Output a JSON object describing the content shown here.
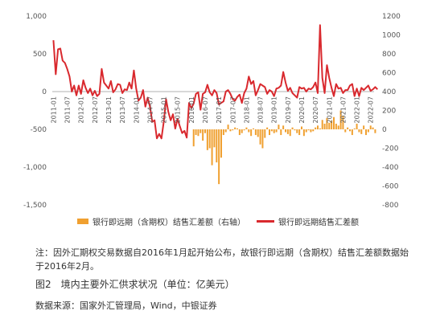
{
  "chart_data": {
    "type": "bar+line",
    "x_tick_labels": [
      "2011-01",
      "2011-07",
      "2012-01",
      "2012-07",
      "2013-01",
      "2013-07",
      "2014-01",
      "2014-07",
      "2015-01",
      "2015-07",
      "2016-01",
      "2016-07",
      "2017-01",
      "2017-07",
      "2018-01",
      "2018-07",
      "2019-01",
      "2019-07",
      "2020-01",
      "2020-07",
      "2021-01",
      "2021-07",
      "2022-01",
      "2022-07"
    ],
    "left_axis": {
      "ticks": [
        1000,
        500,
        0,
        -500,
        -1000,
        -1500
      ],
      "tick_labels": [
        "1,000",
        "500",
        "0",
        "-500",
        "-1,000",
        "-1,500"
      ],
      "range": [
        -1500,
        1000
      ]
    },
    "right_axis": {
      "ticks": [
        1200,
        1000,
        800,
        600,
        400,
        200,
        0,
        -200,
        -400,
        -600,
        -800
      ],
      "tick_labels": [
        "1200",
        "1000",
        "800",
        "600",
        "400",
        "200",
        "0",
        "-200",
        "-400",
        "-600",
        "-800"
      ],
      "range": [
        -800,
        1200
      ]
    },
    "series": [
      {
        "name": "银行即远期（含期权）结售汇差额（右轴）",
        "type": "bar",
        "axis": "right",
        "color": "#f0a030",
        "start": "2016-02",
        "values": [
          -180,
          -60,
          -70,
          -40,
          -120,
          -40,
          -220,
          -200,
          -380,
          -190,
          -350,
          -580,
          -300,
          -60,
          -30,
          50,
          -20,
          -10,
          20,
          10,
          -60,
          -40,
          -10,
          20,
          -30,
          -70,
          10,
          -60,
          -80,
          -160,
          -200,
          -90,
          20,
          -60,
          -20,
          -40,
          -30,
          50,
          -60,
          40,
          -30,
          -50,
          -70,
          20,
          -10,
          -40,
          -60,
          30,
          -70,
          -30,
          -10,
          -30,
          -20,
          20,
          40,
          10,
          100,
          60,
          120,
          70,
          90,
          130,
          60,
          40,
          200,
          140,
          -30,
          20,
          -20,
          -60,
          10,
          60,
          -30,
          -50,
          40,
          -60,
          -30,
          40,
          20,
          -40
        ]
      },
      {
        "name": "银行即远期结售汇差额",
        "type": "line",
        "axis": "left",
        "color": "#d9292e",
        "start": "2011-01",
        "values": [
          680,
          230,
          560,
          570,
          410,
          380,
          300,
          200,
          0,
          80,
          -50,
          80,
          -30,
          150,
          50,
          -20,
          40,
          -50,
          10,
          -60,
          -30,
          300,
          120,
          80,
          40,
          140,
          -10,
          30,
          100,
          90,
          -20,
          30,
          20,
          120,
          40,
          280,
          40,
          -120,
          -80,
          20,
          -200,
          -80,
          -200,
          -400,
          -380,
          -620,
          -560,
          -620,
          -400,
          -100,
          -270,
          -380,
          -300,
          -490,
          -360,
          -460,
          -550,
          -520,
          -610,
          -150,
          -220,
          -160,
          -30,
          -10,
          -240,
          -30,
          -10,
          90,
          -10,
          -50,
          20,
          -20,
          -170,
          -150,
          -130,
          0,
          20,
          -30,
          -100,
          -120,
          -70,
          -40,
          -150,
          -20,
          40,
          200,
          100,
          140,
          -50,
          20,
          100,
          80,
          60,
          -30,
          20,
          0,
          -60,
          40,
          50,
          80,
          260,
          120,
          10,
          50,
          -20,
          -50,
          -80,
          60,
          40,
          50,
          0,
          40,
          30,
          60,
          120,
          -20,
          880,
          180,
          -20,
          350,
          180,
          50,
          -60,
          100,
          40,
          50,
          -20,
          20,
          20,
          80,
          100,
          -60,
          40,
          -60,
          50,
          20,
          50,
          80,
          10,
          30,
          60,
          30
        ]
      }
    ],
    "legend_position": "bottom-center",
    "grid": false
  },
  "legend": {
    "bar_label": "银行即远期（含期权）结售汇差额（右轴）",
    "line_label": "银行即远期结售汇差额"
  },
  "note": "注：因外汇期权交易数据自2016年1月起开始公布，故银行即远期（含期权）结售汇差额数据始于2016年2月。",
  "caption": "图2　境内主要外汇供求状况（单位：亿美元）",
  "source": "数据来源：国家外汇管理局，Wind，中银证券"
}
